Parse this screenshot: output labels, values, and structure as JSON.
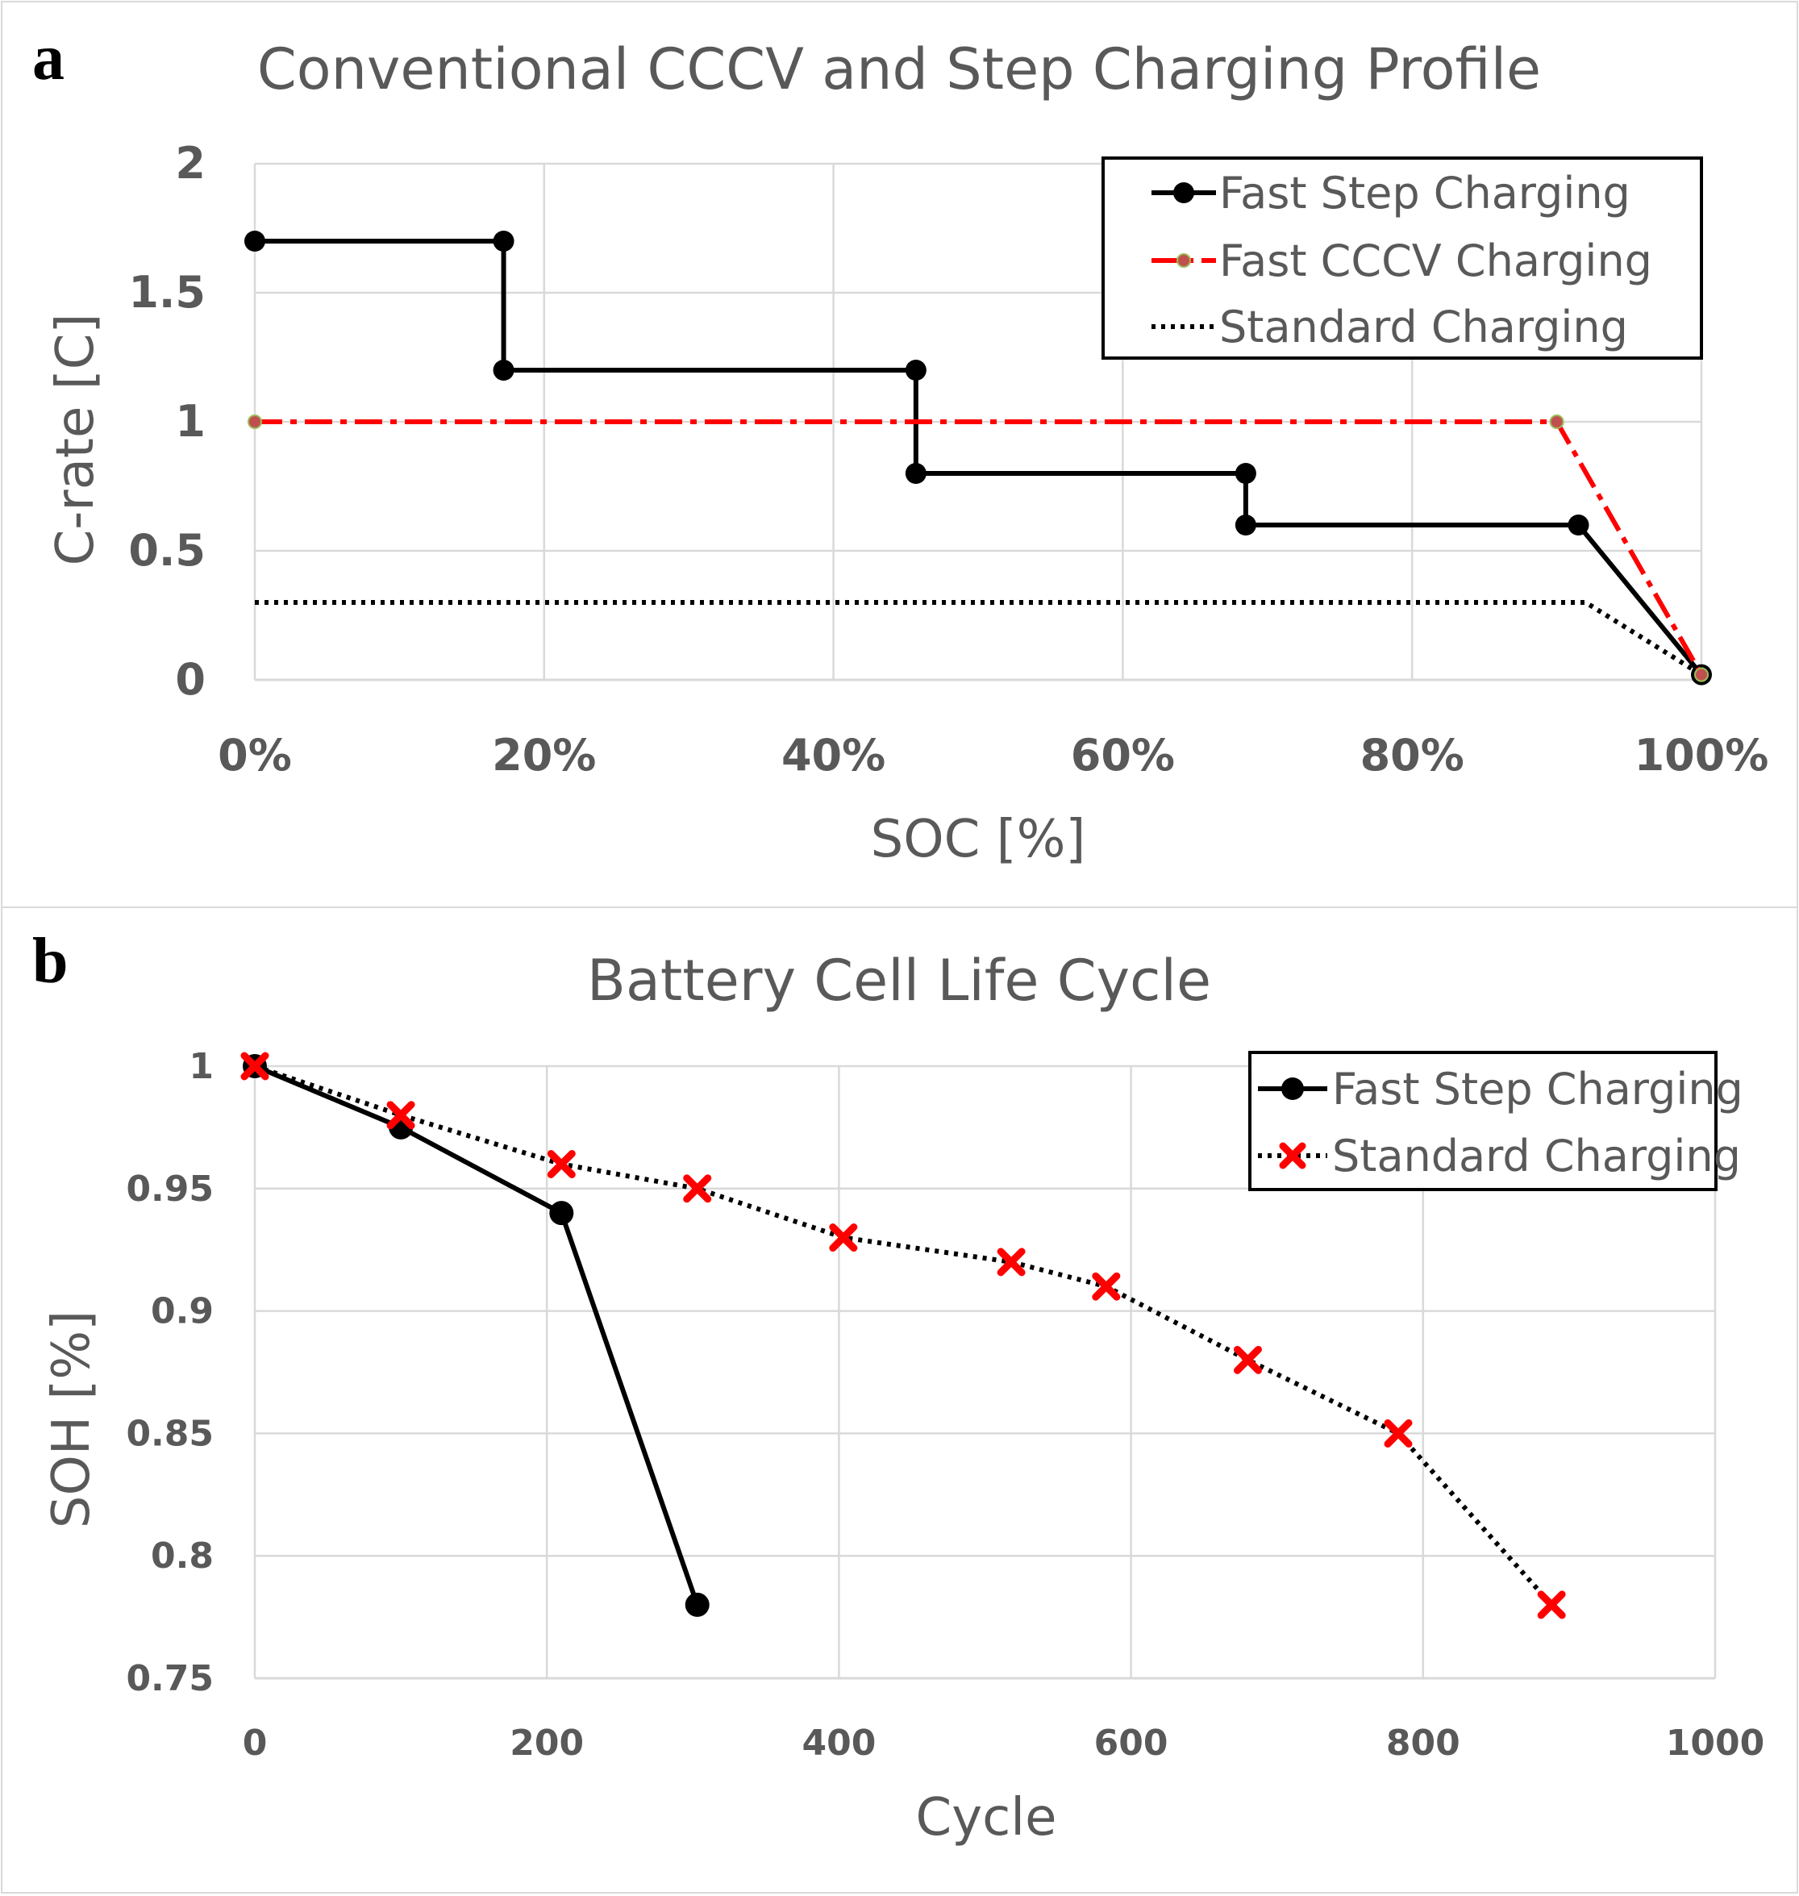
{
  "chart_data": [
    {
      "panel": "a",
      "type": "line",
      "title": "Conventional CCCV and Step Charging Profile",
      "xlabel": "SOC [%]",
      "ylabel": "C-rate [C]",
      "xlim": [
        0,
        100
      ],
      "ylim": [
        0,
        2
      ],
      "xticks": [
        0,
        20,
        40,
        60,
        80,
        100
      ],
      "xtick_labels": [
        "0%",
        "20%",
        "40%",
        "60%",
        "80%",
        "100%"
      ],
      "yticks": [
        0,
        0.5,
        1,
        1.5,
        2
      ],
      "ytick_labels": [
        "0",
        "0.5",
        "1",
        "1.5",
        "2"
      ],
      "grid": true,
      "legend_position": "top-right",
      "series": [
        {
          "name": "Fast Step Charging",
          "color": "#000000",
          "style": "solid",
          "marker": "circle",
          "x": [
            0,
            17.2,
            17.2,
            45.7,
            45.7,
            68.5,
            68.5,
            91.5,
            100
          ],
          "y": [
            1.7,
            1.7,
            1.2,
            1.2,
            0.8,
            0.8,
            0.6,
            0.6,
            0.02
          ]
        },
        {
          "name": "Fast CCCV Charging",
          "color": "#ff0000",
          "marker_fill": "#c0504d",
          "marker_edge": "#9bbb59",
          "style": "dashdot",
          "marker": "small-circle",
          "x": [
            0,
            90,
            100
          ],
          "y": [
            1,
            1,
            0.02
          ]
        },
        {
          "name": "Standard Charging",
          "color": "#000000",
          "style": "dotted",
          "marker": "none",
          "x": [
            0,
            92,
            100
          ],
          "y": [
            0.3,
            0.3,
            0.02
          ]
        }
      ]
    },
    {
      "panel": "b",
      "type": "line",
      "title": "Battery Cell Life Cycle",
      "xlabel": "Cycle",
      "ylabel": "SOH [%]",
      "xlim": [
        0,
        1000
      ],
      "ylim": [
        0.75,
        1
      ],
      "xticks": [
        0,
        200,
        400,
        600,
        800,
        1000
      ],
      "xtick_labels": [
        "0",
        "200",
        "400",
        "600",
        "800",
        "1000"
      ],
      "yticks": [
        0.75,
        0.8,
        0.85,
        0.9,
        0.95,
        1
      ],
      "ytick_labels": [
        "0.75",
        "0.8",
        "0.85",
        "0.9",
        "0.95",
        "1"
      ],
      "grid": true,
      "legend_position": "top-right",
      "series": [
        {
          "name": "Fast Step Charging",
          "color": "#000000",
          "style": "solid",
          "marker": "circle",
          "x": [
            0,
            100,
            210,
            303
          ],
          "y": [
            1,
            0.975,
            0.94,
            0.78
          ]
        },
        {
          "name": "Standard Charging",
          "color": "#000000",
          "marker_color": "#ff0000",
          "style": "dotted",
          "marker": "x",
          "x": [
            0,
            100,
            210,
            303,
            403,
            518,
            583,
            680,
            783,
            888
          ],
          "y": [
            1,
            0.98,
            0.96,
            0.95,
            0.93,
            0.92,
            0.91,
            0.88,
            0.85,
            0.78
          ]
        }
      ]
    }
  ]
}
